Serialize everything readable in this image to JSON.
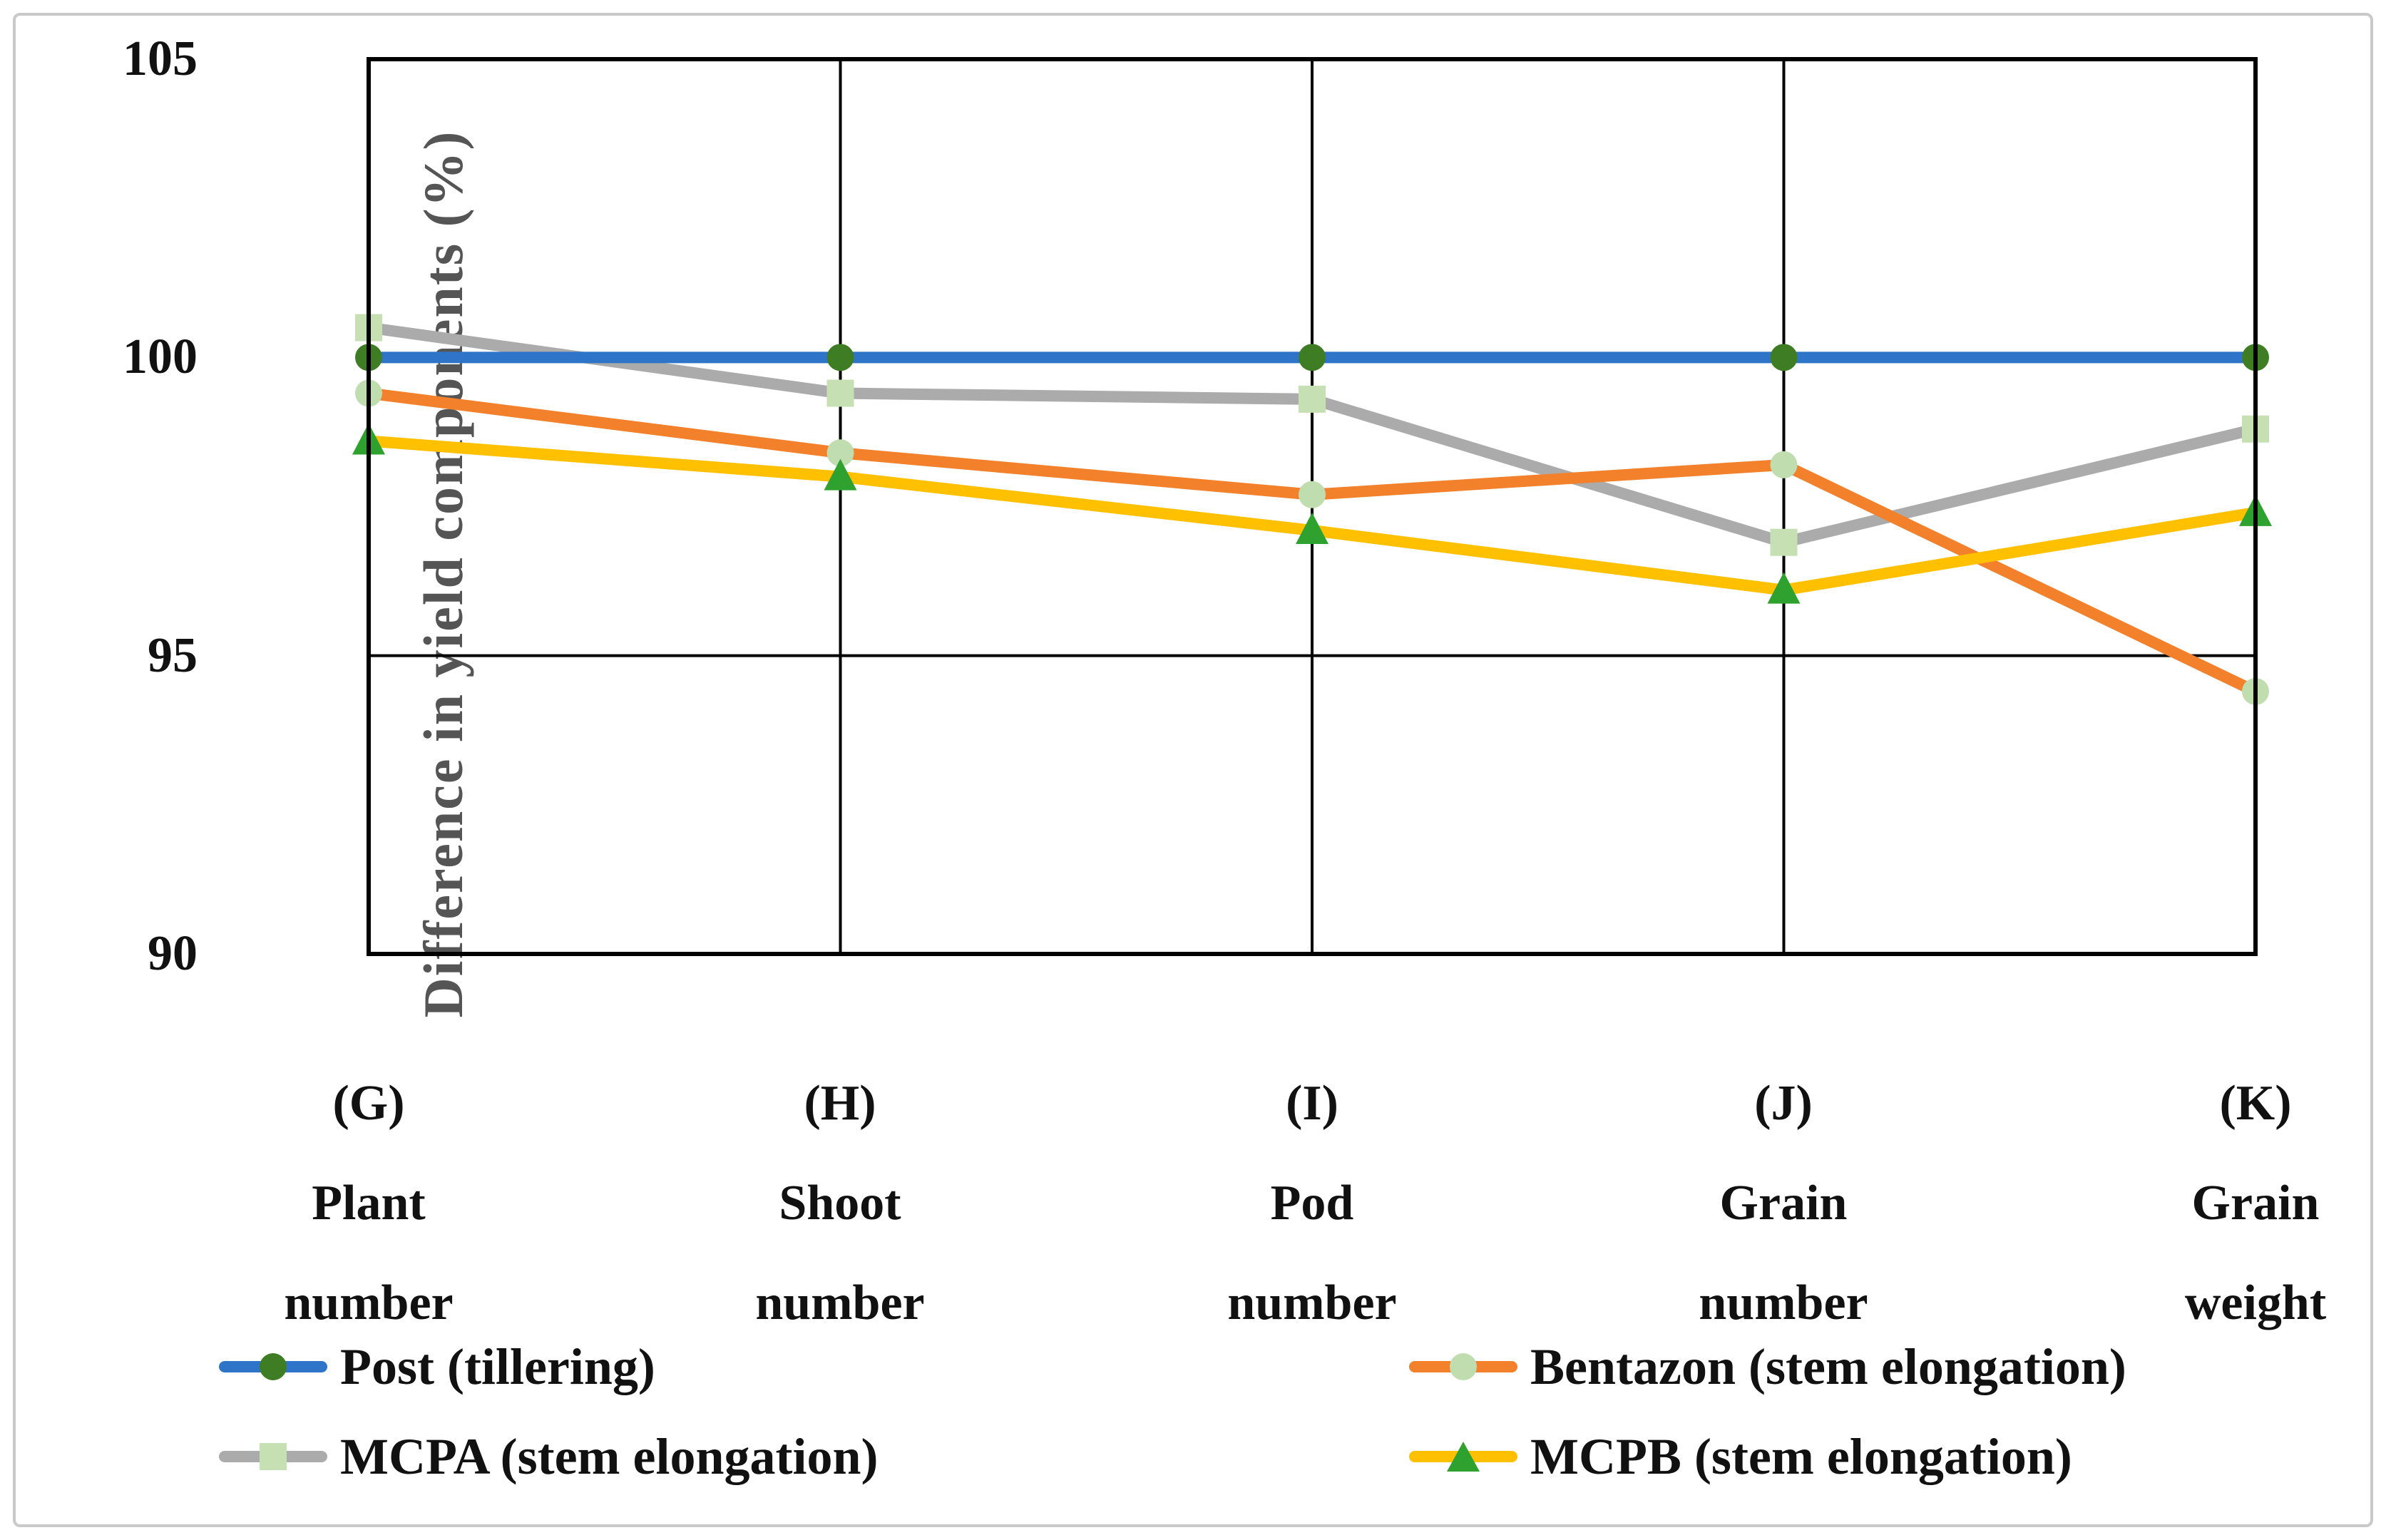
{
  "figure": {
    "background": "#ffffff",
    "border_color": "#c9c9c9"
  },
  "y_axis": {
    "title": "Difference in yield components (%)",
    "title_color": "#555555"
  },
  "chart_data": {
    "type": "line",
    "title": "",
    "xlabel": "",
    "ylabel": "Difference in yield components (%)",
    "ylim": [
      90,
      105
    ],
    "yticks": [
      105,
      100,
      95,
      90
    ],
    "gridlines_y": [
      100,
      95
    ],
    "grid": "on",
    "legend_position": "bottom",
    "categories": [
      "(G) Plant number",
      "(H) Shoot number",
      "(I) Pod number",
      "(J) Grain number",
      "(K) Grain weight"
    ],
    "categories_lines": [
      [
        "(G)",
        "Plant",
        "number"
      ],
      [
        "(H)",
        "Shoot",
        "number"
      ],
      [
        "(I)",
        "Pod",
        "number"
      ],
      [
        "(J)",
        "Grain",
        "number"
      ],
      [
        "(K)",
        "Grain",
        "weight"
      ]
    ],
    "series": [
      {
        "name": "Post (tillering)",
        "color": "#2e74c8",
        "marker": "circle",
        "marker_color": "#3e7d23",
        "values": [
          100,
          100,
          100,
          100,
          100
        ]
      },
      {
        "name": "Bentazon (stem elongation)",
        "color": "#f3802b",
        "marker": "circle",
        "marker_color": "#bfddae",
        "values": [
          99.4,
          98.4,
          97.7,
          98.2,
          94.4
        ]
      },
      {
        "name": "MCPA (stem elongation)",
        "color": "#ababab",
        "marker": "square",
        "marker_color": "#c6e0b4",
        "values": [
          100.5,
          99.4,
          99.3,
          96.9,
          98.8
        ]
      },
      {
        "name": "MCPB (stem elongation)",
        "color": "#ffc000",
        "marker": "triangle",
        "marker_color": "#2fa12f",
        "values": [
          98.6,
          98.0,
          97.1,
          96.1,
          97.4
        ]
      }
    ],
    "plot_order": [
      2,
      1,
      3,
      0
    ],
    "axis_color": "#000000"
  }
}
